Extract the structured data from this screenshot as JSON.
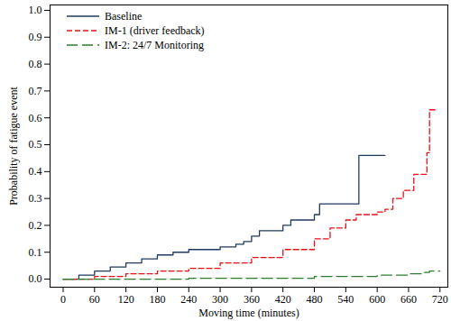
{
  "chart_data": {
    "type": "line",
    "x_label": "Moving time (minutes)",
    "y_label": "Probability of fatigue event",
    "xlim": [
      -25,
      735
    ],
    "xticks": [
      0,
      60,
      120,
      180,
      240,
      300,
      360,
      420,
      480,
      540,
      600,
      660,
      720
    ],
    "ylim": [
      -0.03,
      1.02
    ],
    "yticks": [
      {
        "value": 0,
        "label": "0.0"
      },
      0.1,
      0.2,
      0.3,
      0.4,
      0.5,
      0.6,
      0.7,
      0.8,
      0.9,
      {
        "value": 1,
        "label": "1.0"
      }
    ],
    "grid": false,
    "legend": "top-left",
    "series": [
      {
        "name": "Baseline",
        "color": "#1f3a5f",
        "line_style": "solid",
        "x": [
          0,
          30,
          60,
          90,
          120,
          150,
          180,
          210,
          240,
          270,
          300,
          330,
          345,
          360,
          375,
          420,
          435,
          450,
          480,
          490,
          565,
          615
        ],
        "values": [
          0,
          0.015,
          0.03,
          0.045,
          0.06,
          0.075,
          0.09,
          0.1,
          0.11,
          0.11,
          0.12,
          0.13,
          0.14,
          0.16,
          0.18,
          0.2,
          0.22,
          0.22,
          0.24,
          0.28,
          0.46,
          0.46
        ]
      },
      {
        "name": "IM-1 (driver feedback)",
        "color": "#e8101a",
        "line_style": "dashed",
        "x": [
          0,
          60,
          120,
          180,
          240,
          300,
          360,
          420,
          480,
          510,
          540,
          560,
          600,
          615,
          630,
          650,
          670,
          690,
          695,
          700,
          715
        ],
        "values": [
          0,
          0.01,
          0.02,
          0.03,
          0.04,
          0.06,
          0.08,
          0.11,
          0.15,
          0.19,
          0.22,
          0.24,
          0.25,
          0.26,
          0.3,
          0.33,
          0.39,
          0.39,
          0.47,
          0.63,
          0.63
        ]
      },
      {
        "name": "IM-2: 24/7 Monitoring",
        "color": "#2e7d2e",
        "line_style": "longdash",
        "x": [
          0,
          240,
          480,
          600,
          660,
          690,
          700,
          720
        ],
        "values": [
          0,
          0.003,
          0.01,
          0.015,
          0.02,
          0.025,
          0.03,
          0.03
        ]
      }
    ]
  }
}
